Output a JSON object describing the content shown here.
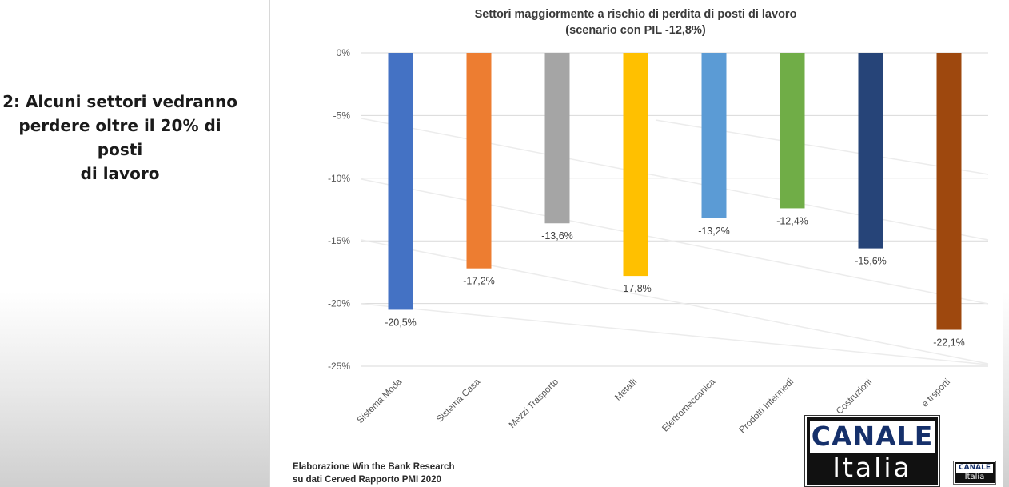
{
  "caption": {
    "line1": "2: Alcuni settori vedranno",
    "line2": "perdere oltre il 20% di posti",
    "line3": "di lavoro"
  },
  "source": {
    "line1": "Elaborazione Win the Bank Research",
    "line2": "su dati Cerved Rapporto PMI 2020"
  },
  "logo": {
    "top": "CANALE",
    "bottom": "Italia",
    "small_top": "CANALE",
    "small_bottom": "Italia"
  },
  "chart_data": {
    "type": "bar",
    "title": "Settori maggiormente a rischio di perdita di posti di lavoro",
    "subtitle": "(scenario con PIL -12,8%)",
    "categories": [
      "Sistema Moda",
      "Sistema Casa",
      "Mezzi Trasporto",
      "Metalli",
      "Elettromeccanica",
      "Prodotti Intermedi",
      "Costruzioni",
      "e trsporti"
    ],
    "values": [
      -20.5,
      -17.2,
      -13.6,
      -17.8,
      -13.2,
      -12.4,
      -15.6,
      -22.1
    ],
    "labels": [
      "-20,5%",
      "-17,2%",
      "-13,6%",
      "-17,8%",
      "-13,2%",
      "-12,4%",
      "-15,6%",
      "-22,1%"
    ],
    "colors": [
      "#4472c4",
      "#ed7d31",
      "#a5a5a5",
      "#ffc000",
      "#5b9bd5",
      "#70ad47",
      "#264478",
      "#9e480e"
    ],
    "yticks": [
      0,
      -5,
      -10,
      -15,
      -20,
      -25
    ],
    "ytick_labels": [
      "0%",
      "-5%",
      "-10%",
      "-15%",
      "-20%",
      "-25%"
    ],
    "ylim": [
      -25,
      0
    ],
    "grid": true,
    "xlabel": "",
    "ylabel": ""
  }
}
